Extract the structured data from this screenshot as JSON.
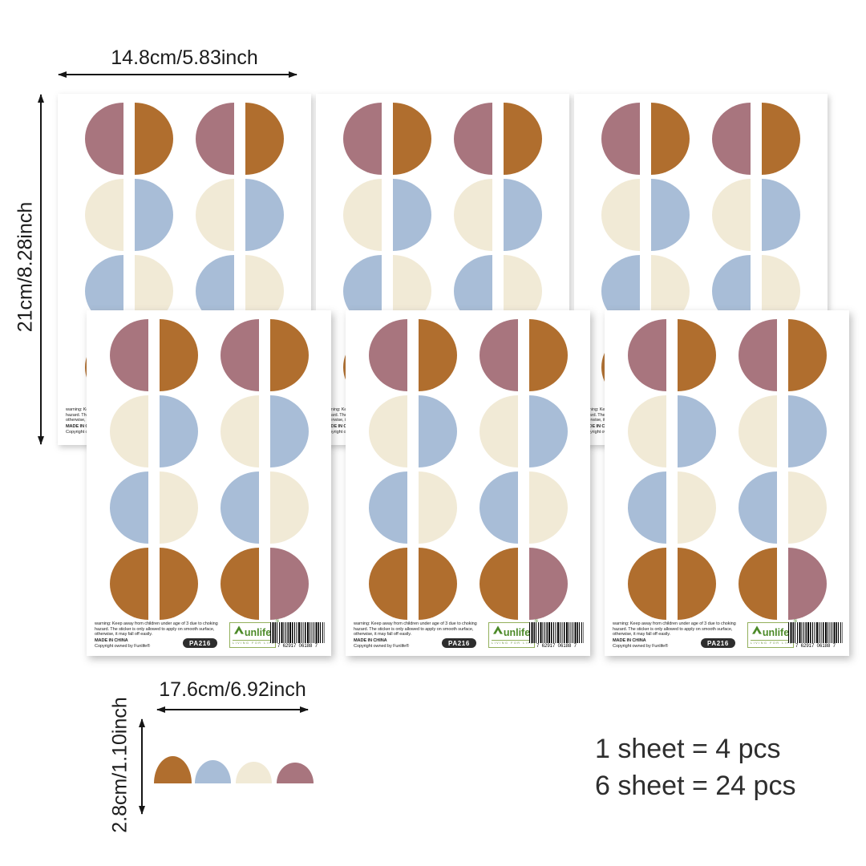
{
  "palette": {
    "mauve": "#a8757e",
    "rust": "#b06e2e",
    "cream": "#f1ead6",
    "blue": "#a8bdd7",
    "logo_green": "#4c8a28",
    "badge_bg": "#2d2d2d",
    "arrow_black": "#161616"
  },
  "dimensions": {
    "sheet_width_label": "14.8cm/5.83inch",
    "sheet_height_label": "21cm/8.28inch",
    "piece_width_label": "17.6cm/6.92inch",
    "piece_height_label": "2.8cm/1.10inch"
  },
  "sheet": {
    "rows": [
      [
        [
          "mauve",
          "rust"
        ],
        [
          "mauve",
          "rust"
        ]
      ],
      [
        [
          "cream",
          "blue"
        ],
        [
          "cream",
          "blue"
        ]
      ],
      [
        [
          "blue",
          "cream"
        ],
        [
          "blue",
          "cream"
        ]
      ],
      [
        [
          "rust",
          "rust"
        ],
        [
          "rust",
          "mauve"
        ]
      ]
    ],
    "warning_lines": [
      "warning: Keep away from children under age of 3 due to choking",
      "hazard. The sticker is only allowed to apply on smooth surface,",
      "otherwise, it may fall off easily."
    ],
    "made_in": "MADE IN CHINA",
    "copyright": "Copyright owned by Funlife®",
    "sku": "PA216",
    "logo": {
      "name": "unlife",
      "registered": "®",
      "tagline": "LIVING FOR LIFE"
    },
    "barcode_digits": "7  62917  06188  7"
  },
  "strip_colors": [
    "rust",
    "blue",
    "cream",
    "mauve"
  ],
  "summary": {
    "line1": "1 sheet = 4 pcs",
    "line2": "6 sheet = 24 pcs"
  }
}
